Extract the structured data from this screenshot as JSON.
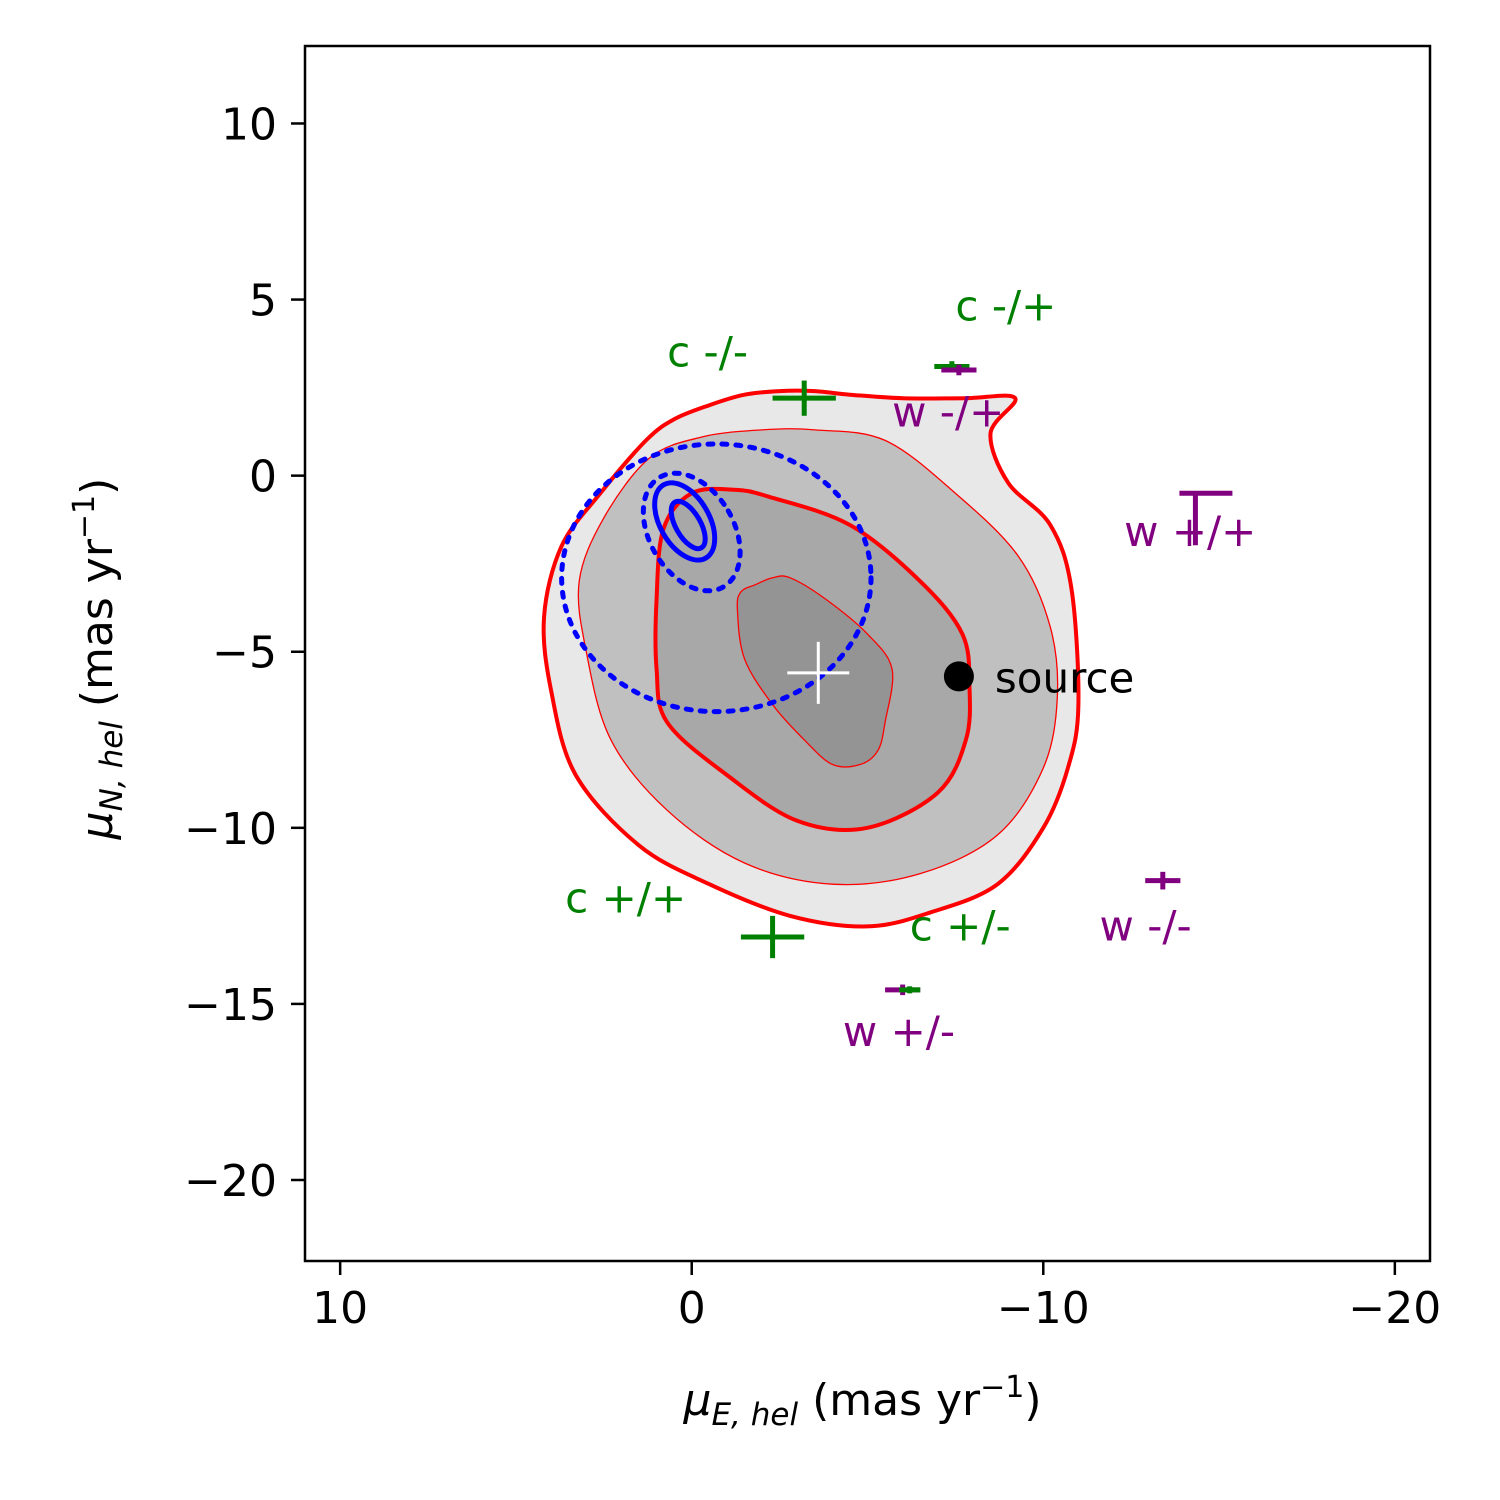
{
  "chart_data": {
    "type": "scatter",
    "title": "",
    "xlabel": {
      "symbol": "μ",
      "subscript": "E, hel",
      "units": " (mas yr",
      "exponent": "−1",
      "close": ")"
    },
    "ylabel": {
      "symbol": "μ",
      "subscript": "N, hel",
      "units": " (mas yr",
      "exponent": "−1",
      "close": ")"
    },
    "xlim": [
      11,
      -21
    ],
    "ylim": [
      -22.3,
      12.2
    ],
    "x_reversed": true,
    "xticks": [
      10,
      0,
      -10,
      -20
    ],
    "xtick_labels": [
      "10",
      "0",
      "−10",
      "−20"
    ],
    "yticks": [
      10,
      5,
      0,
      -5,
      -10,
      -15,
      -20
    ],
    "ytick_labels": [
      "10",
      "5",
      "0",
      "−5",
      "−10",
      "−15",
      "−20"
    ],
    "grid": false,
    "colors": {
      "green": "#008000",
      "purple": "#800080",
      "red": "#ff0000",
      "blue": "#0000ff",
      "black": "#000000",
      "white": "#ffffff"
    },
    "filled_contours": [
      {
        "level": "outer",
        "color": "#e8e8e8",
        "points": [
          [
            -9.2,
            2.2
          ],
          [
            -8.5,
            1.2
          ],
          [
            -9.0,
            -0.2
          ],
          [
            -10.2,
            -1.4
          ],
          [
            -10.8,
            -3.2
          ],
          [
            -11.0,
            -6.5
          ],
          [
            -10.7,
            -8.3
          ],
          [
            -10.0,
            -10.0
          ],
          [
            -8.7,
            -11.6
          ],
          [
            -6.8,
            -12.4
          ],
          [
            -5.0,
            -12.8
          ],
          [
            -2.8,
            -12.5
          ],
          [
            -0.5,
            -11.6
          ],
          [
            1.5,
            -10.5
          ],
          [
            3.3,
            -8.5
          ],
          [
            4.0,
            -6.1
          ],
          [
            4.2,
            -4.0
          ],
          [
            3.7,
            -2.0
          ],
          [
            2.6,
            -0.5
          ],
          [
            1.3,
            1.0
          ],
          [
            0.5,
            1.6
          ],
          [
            -0.5,
            2.0
          ],
          [
            -1.5,
            2.3
          ],
          [
            -2.5,
            2.4
          ],
          [
            -3.5,
            2.4
          ],
          [
            -4.5,
            2.3
          ],
          [
            -6.0,
            2.2
          ],
          [
            -7.8,
            2.2
          ]
        ]
      },
      {
        "level": "middle",
        "color": "#c0c0c0",
        "points": [
          [
            -2.0,
            1.3
          ],
          [
            -3.5,
            1.3
          ],
          [
            -5.5,
            1.0
          ],
          [
            -7.5,
            -0.5
          ],
          [
            -9.3,
            -2.3
          ],
          [
            -10.2,
            -4.3
          ],
          [
            -10.4,
            -6.3
          ],
          [
            -10.0,
            -8.3
          ],
          [
            -8.7,
            -10.2
          ],
          [
            -6.5,
            -11.3
          ],
          [
            -4.0,
            -11.6
          ],
          [
            -1.5,
            -11.0
          ],
          [
            0.7,
            -9.5
          ],
          [
            2.3,
            -7.5
          ],
          [
            3.0,
            -5.0
          ],
          [
            3.2,
            -3.0
          ],
          [
            2.5,
            -1.2
          ],
          [
            1.2,
            0.5
          ],
          [
            -0.3,
            1.1
          ]
        ]
      },
      {
        "level": "inner",
        "color": "#a8a8a8",
        "points": [
          [
            -1.2,
            -0.4
          ],
          [
            -2.2,
            -0.6
          ],
          [
            -4.5,
            -1.4
          ],
          [
            -6.5,
            -3.0
          ],
          [
            -7.7,
            -4.5
          ],
          [
            -7.9,
            -6.0
          ],
          [
            -7.8,
            -7.5
          ],
          [
            -7.0,
            -9.0
          ],
          [
            -5.0,
            -10.0
          ],
          [
            -3.0,
            -9.8
          ],
          [
            -1.0,
            -8.5
          ],
          [
            0.7,
            -7.0
          ],
          [
            1.0,
            -5.5
          ],
          [
            1.0,
            -3.5
          ],
          [
            0.8,
            -1.5
          ],
          [
            0.0,
            -0.5
          ]
        ]
      },
      {
        "level": "core",
        "color": "#949494",
        "points": [
          [
            -2.3,
            -2.9
          ],
          [
            -2.8,
            -2.9
          ],
          [
            -3.8,
            -3.5
          ],
          [
            -5.0,
            -4.5
          ],
          [
            -5.7,
            -5.5
          ],
          [
            -5.5,
            -7.0
          ],
          [
            -5.3,
            -7.8
          ],
          [
            -4.8,
            -8.2
          ],
          [
            -4.0,
            -8.2
          ],
          [
            -3.2,
            -7.5
          ],
          [
            -2.3,
            -6.5
          ],
          [
            -1.5,
            -5.2
          ],
          [
            -1.3,
            -3.8
          ],
          [
            -1.4,
            -3.3
          ],
          [
            -1.8,
            -3.1
          ]
        ]
      }
    ],
    "red_contours": [
      {
        "style": "thick",
        "points": [
          [
            -9.2,
            2.2
          ],
          [
            -8.5,
            1.2
          ],
          [
            -9.0,
            -0.2
          ],
          [
            -10.2,
            -1.4
          ],
          [
            -10.8,
            -3.2
          ],
          [
            -11.0,
            -6.5
          ],
          [
            -10.7,
            -8.3
          ],
          [
            -10.0,
            -10.0
          ],
          [
            -8.7,
            -11.6
          ],
          [
            -6.8,
            -12.4
          ],
          [
            -5.0,
            -12.8
          ],
          [
            -2.8,
            -12.5
          ],
          [
            -0.5,
            -11.6
          ],
          [
            1.5,
            -10.5
          ],
          [
            3.3,
            -8.5
          ],
          [
            4.0,
            -6.1
          ],
          [
            4.2,
            -4.0
          ],
          [
            3.7,
            -2.0
          ],
          [
            2.6,
            -0.5
          ],
          [
            1.3,
            1.0
          ],
          [
            0.5,
            1.6
          ],
          [
            -0.5,
            2.0
          ],
          [
            -1.5,
            2.3
          ],
          [
            -2.5,
            2.4
          ],
          [
            -3.5,
            2.4
          ],
          [
            -4.5,
            2.3
          ],
          [
            -6.0,
            2.2
          ],
          [
            -7.8,
            2.2
          ]
        ]
      },
      {
        "style": "thin",
        "points": [
          [
            -2.0,
            1.3
          ],
          [
            -3.5,
            1.3
          ],
          [
            -5.5,
            1.0
          ],
          [
            -7.5,
            -0.5
          ],
          [
            -9.3,
            -2.3
          ],
          [
            -10.2,
            -4.3
          ],
          [
            -10.4,
            -6.3
          ],
          [
            -10.0,
            -8.3
          ],
          [
            -8.7,
            -10.2
          ],
          [
            -6.5,
            -11.3
          ],
          [
            -4.0,
            -11.6
          ],
          [
            -1.5,
            -11.0
          ],
          [
            0.7,
            -9.5
          ],
          [
            2.3,
            -7.5
          ],
          [
            3.0,
            -5.0
          ],
          [
            3.2,
            -3.0
          ],
          [
            2.5,
            -1.2
          ],
          [
            1.2,
            0.5
          ],
          [
            -0.3,
            1.1
          ]
        ]
      },
      {
        "style": "thick",
        "points": [
          [
            -1.2,
            -0.4
          ],
          [
            -2.2,
            -0.6
          ],
          [
            -4.5,
            -1.4
          ],
          [
            -6.5,
            -3.0
          ],
          [
            -7.7,
            -4.5
          ],
          [
            -7.9,
            -6.0
          ],
          [
            -7.8,
            -7.5
          ],
          [
            -7.0,
            -9.0
          ],
          [
            -5.0,
            -10.0
          ],
          [
            -3.0,
            -9.8
          ],
          [
            -1.0,
            -8.5
          ],
          [
            0.7,
            -7.0
          ],
          [
            1.0,
            -5.5
          ],
          [
            1.0,
            -3.5
          ],
          [
            0.8,
            -1.5
          ],
          [
            0.0,
            -0.5
          ]
        ]
      },
      {
        "style": "thin",
        "points": [
          [
            -2.3,
            -2.9
          ],
          [
            -2.8,
            -2.9
          ],
          [
            -3.8,
            -3.5
          ],
          [
            -5.0,
            -4.5
          ],
          [
            -5.7,
            -5.5
          ],
          [
            -5.5,
            -7.0
          ],
          [
            -5.3,
            -7.8
          ],
          [
            -4.8,
            -8.2
          ],
          [
            -4.0,
            -8.2
          ],
          [
            -3.2,
            -7.5
          ],
          [
            -2.3,
            -6.5
          ],
          [
            -1.5,
            -5.2
          ],
          [
            -1.3,
            -3.8
          ],
          [
            -1.4,
            -3.3
          ],
          [
            -1.8,
            -3.1
          ]
        ]
      }
    ],
    "blue_ellipses": [
      {
        "cx": -0.7,
        "cy": -2.9,
        "rx": 4.4,
        "ry": 3.8,
        "rotation": 0,
        "style": "dotted"
      },
      {
        "cx": 0.0,
        "cy": -1.6,
        "rx": 1.2,
        "ry": 1.8,
        "rotation": -30,
        "style": "dotted"
      },
      {
        "cx": 0.2,
        "cy": -1.3,
        "rx": 0.7,
        "ry": 1.2,
        "rotation": -30,
        "style": "solid"
      },
      {
        "cx": 0.1,
        "cy": -1.4,
        "rx": 0.35,
        "ry": 0.75,
        "rotation": -30,
        "style": "solid"
      }
    ],
    "center_marker": {
      "x": -3.6,
      "y": -5.6,
      "color": "#ffffff"
    },
    "source": {
      "x": -7.6,
      "y": -5.7,
      "label": "source"
    },
    "error_crosses": [
      {
        "name": "c -/-",
        "series": "c",
        "x": -3.2,
        "y": 2.2,
        "xerr": 0.9,
        "yerr": 0.5
      },
      {
        "name": "c -/+",
        "series": "c",
        "x": -7.4,
        "y": 3.1,
        "xerr": 0.5,
        "yerr": 0.15
      },
      {
        "name": "w -/+",
        "series": "w",
        "x": -7.6,
        "y": 3.0,
        "xerr": 0.5,
        "yerr": 0.15
      },
      {
        "name": "w +/+",
        "series": "w",
        "x": -14.1,
        "y": -0.5,
        "xerr": 0.0,
        "yerr": 0.0,
        "style": "corner"
      },
      {
        "name": "c +/+",
        "series": "c",
        "x": -2.3,
        "y": -13.1,
        "xerr": 0.9,
        "yerr": 0.6
      },
      {
        "name": "w +/-",
        "series": "w",
        "x": -6.0,
        "y": -14.6,
        "xerr": 0.5,
        "yerr": 0.15
      },
      {
        "name": "c +/-",
        "series": "c",
        "x": -6.2,
        "y": -14.6,
        "xerr": 0.3,
        "yerr": 0.1
      },
      {
        "name": "w -/-",
        "series": "w",
        "x": -13.4,
        "y": -11.5,
        "xerr": 0.5,
        "yerr": 0.25
      }
    ],
    "annotations": [
      {
        "text": "c -/-",
        "series": "c",
        "x": 0.7,
        "y": 3.1
      },
      {
        "text": "c -/+",
        "series": "c",
        "x": -7.5,
        "y": 4.4
      },
      {
        "text": "w -/+",
        "series": "w",
        "x": -5.7,
        "y": 1.4
      },
      {
        "text": "w +/+",
        "series": "w",
        "x": -12.3,
        "y": -2.0
      },
      {
        "text": "c +/+",
        "series": "c",
        "x": 3.6,
        "y": -12.4
      },
      {
        "text": "c +/-",
        "series": "c",
        "x": -6.2,
        "y": -13.2
      },
      {
        "text": "w -/-",
        "series": "w",
        "x": -11.6,
        "y": -13.2
      },
      {
        "text": "w +/-",
        "series": "w",
        "x": -4.3,
        "y": -16.2
      }
    ]
  }
}
